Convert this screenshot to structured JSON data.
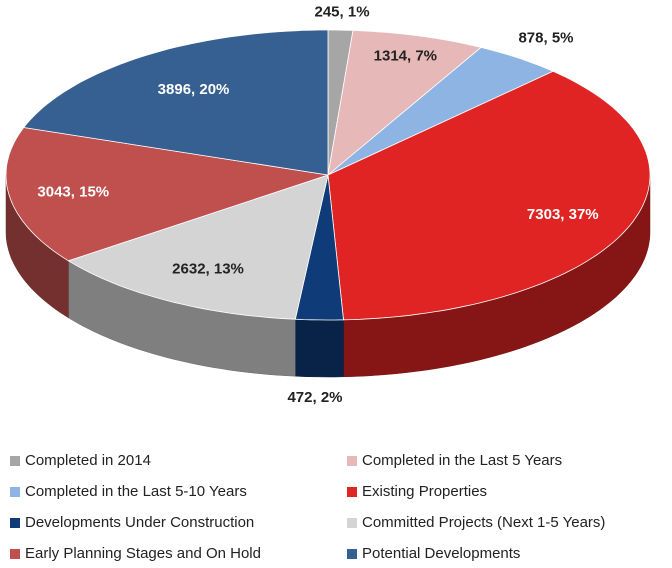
{
  "chart_data": {
    "type": "pie",
    "three_d": true,
    "categories": [
      "Completed in 2014",
      "Completed in the Last 5 Years",
      "Completed in the Last 5-10 Years",
      "Existing Properties",
      "Developments Under Construction",
      "Committed Projects (Next 1-5 Years)",
      "Early Planning Stages and On Hold",
      "Potential Developments"
    ],
    "values": [
      245,
      1314,
      878,
      7303,
      472,
      2632,
      3043,
      3896
    ],
    "value_labels": [
      "245, 1%",
      "1314, 7%",
      "878, 5%",
      "7303, 37%",
      "472, 2%",
      "2632, 13%",
      "3043, 15%",
      "3896, 20%"
    ],
    "colors": [
      "#a6a6a6",
      "#e6b9b8",
      "#8db4e2",
      "#e02424",
      "#0f3b78",
      "#d4d4d4",
      "#c0504d",
      "#376092"
    ],
    "legend": "bottom"
  }
}
